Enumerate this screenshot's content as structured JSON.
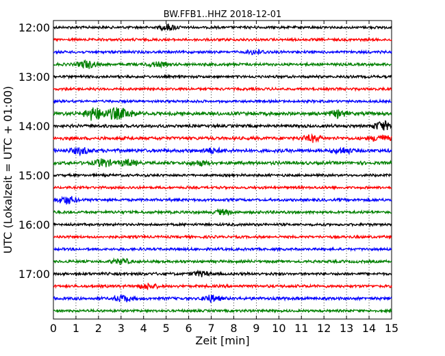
{
  "chart_data": {
    "type": "line",
    "title": "BW.FFB1..HHZ 2018-12-01",
    "xlabel": "Zeit  [min]",
    "ylabel": "UTC (Lokalzeit = UTC + 01:00)",
    "xlim": [
      0,
      15
    ],
    "x_ticks": [
      "0",
      "1",
      "2",
      "3",
      "4",
      "5",
      "6",
      "7",
      "8",
      "9",
      "10",
      "11",
      "12",
      "13",
      "14",
      "15"
    ],
    "y_ticks": [
      "12:00",
      "13:00",
      "14:00",
      "15:00",
      "16:00",
      "17:00"
    ],
    "grid": "vertical-dotted",
    "series_colors": [
      "#000000",
      "#ff0000",
      "#0000ff",
      "#008000"
    ],
    "traces": [
      {
        "start": "12:00",
        "noise": 1.0,
        "events": [
          [
            5.1,
            2.0
          ]
        ]
      },
      {
        "start": "12:15",
        "noise": 1.0,
        "events": []
      },
      {
        "start": "12:30",
        "noise": 1.0,
        "events": [
          [
            9.0,
            1.5
          ]
        ]
      },
      {
        "start": "12:45",
        "noise": 1.1,
        "events": [
          [
            1.5,
            2.5
          ],
          [
            4.6,
            1.5
          ]
        ]
      },
      {
        "start": "13:00",
        "noise": 1.0,
        "events": []
      },
      {
        "start": "13:15",
        "noise": 1.0,
        "events": []
      },
      {
        "start": "13:30",
        "noise": 1.0,
        "events": []
      },
      {
        "start": "13:45",
        "noise": 1.4,
        "events": [
          [
            1.8,
            4.5
          ],
          [
            2.7,
            3.5
          ],
          [
            3.3,
            2.0
          ],
          [
            12.6,
            2.0
          ]
        ]
      },
      {
        "start": "14:00",
        "noise": 1.2,
        "events": [
          [
            14.6,
            3.0
          ]
        ]
      },
      {
        "start": "14:15",
        "noise": 1.3,
        "events": [
          [
            11.5,
            2.0
          ],
          [
            14.5,
            2.0
          ]
        ]
      },
      {
        "start": "14:30",
        "noise": 1.4,
        "events": [
          [
            1.2,
            2.0
          ],
          [
            7.0,
            1.5
          ],
          [
            12.8,
            1.8
          ]
        ]
      },
      {
        "start": "14:45",
        "noise": 1.3,
        "events": [
          [
            2.2,
            2.5
          ],
          [
            3.3,
            2.0
          ],
          [
            6.5,
            1.5
          ]
        ]
      },
      {
        "start": "15:00",
        "noise": 1.0,
        "events": []
      },
      {
        "start": "15:15",
        "noise": 1.0,
        "events": []
      },
      {
        "start": "15:30",
        "noise": 1.1,
        "events": [
          [
            0.6,
            2.5
          ]
        ]
      },
      {
        "start": "15:45",
        "noise": 1.1,
        "events": [
          [
            7.5,
            1.6
          ]
        ]
      },
      {
        "start": "16:00",
        "noise": 1.0,
        "events": []
      },
      {
        "start": "16:15",
        "noise": 1.0,
        "events": []
      },
      {
        "start": "16:30",
        "noise": 1.0,
        "events": []
      },
      {
        "start": "16:45",
        "noise": 1.1,
        "events": [
          [
            3.0,
            1.8
          ]
        ]
      },
      {
        "start": "17:00",
        "noise": 1.1,
        "events": [
          [
            6.5,
            1.5
          ]
        ]
      },
      {
        "start": "17:15",
        "noise": 1.1,
        "events": [
          [
            4.2,
            1.8
          ]
        ]
      },
      {
        "start": "17:30",
        "noise": 1.2,
        "events": [
          [
            3.1,
            2.0
          ],
          [
            7.0,
            2.0
          ]
        ]
      },
      {
        "start": "17:45",
        "noise": 1.0,
        "events": []
      }
    ]
  }
}
